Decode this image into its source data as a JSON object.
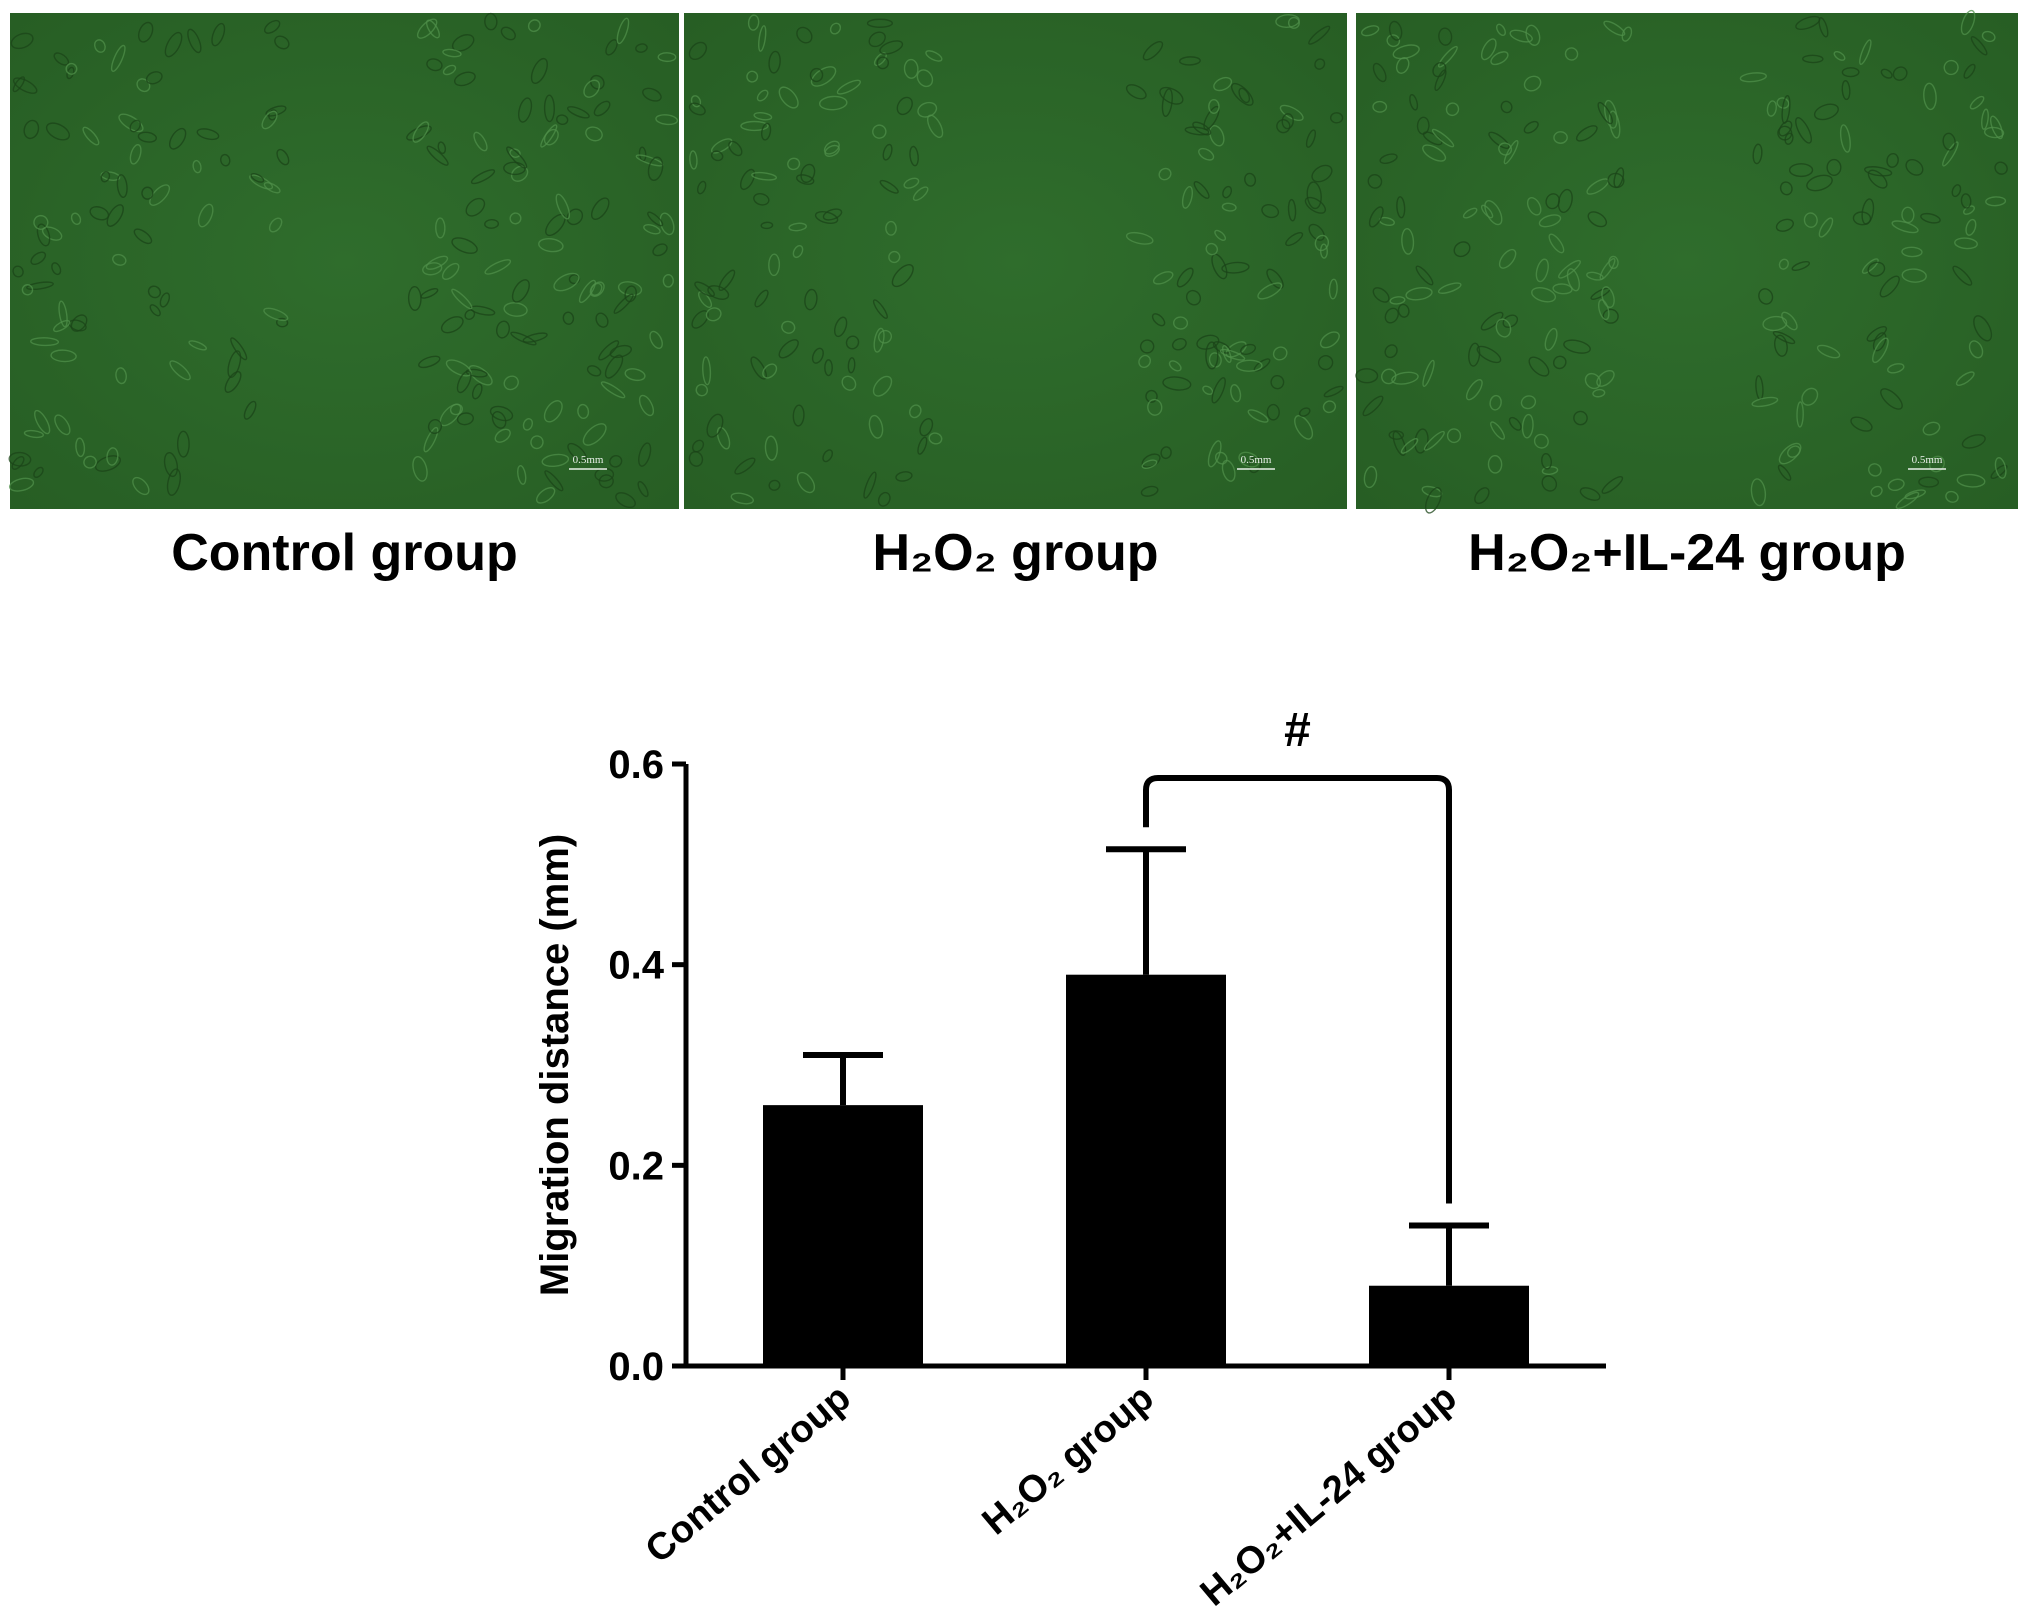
{
  "panels": [
    {
      "label": "Control group",
      "scale_bar": "0.5mm"
    },
    {
      "label": "H₂O₂ group",
      "scale_bar": "0.5mm"
    },
    {
      "label": "H₂O₂+IL-24 group",
      "scale_bar": "0.5mm"
    }
  ],
  "chart_data": {
    "type": "bar",
    "y_label": "Migration distance (mm)",
    "categories": [
      "Control group",
      "H₂O₂ group",
      "H₂O₂+IL-24 group"
    ],
    "values": [
      0.26,
      0.39,
      0.08
    ],
    "errors": [
      0.05,
      0.125,
      0.06
    ],
    "color": "#000000",
    "ylim": [
      0,
      0.6
    ],
    "yticks": [
      {
        "value": 0,
        "label": "0.0"
      },
      0.2,
      0.4,
      0.6
    ],
    "significance": {
      "from": 1,
      "to": 2,
      "label": "#"
    }
  }
}
